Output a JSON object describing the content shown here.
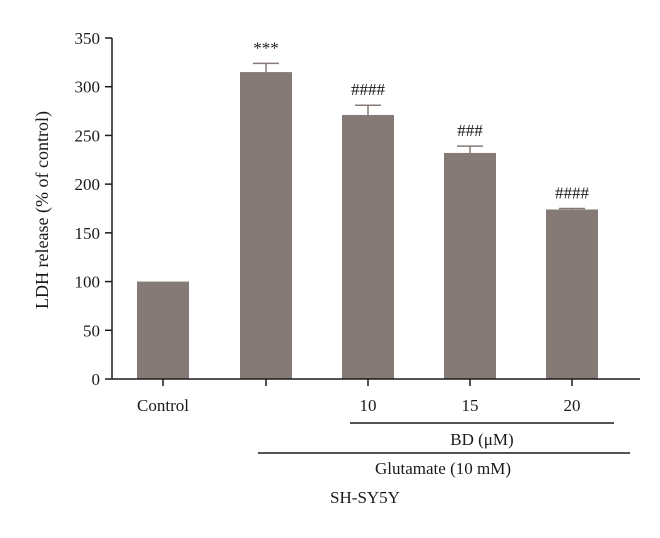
{
  "chart_data": {
    "type": "bar",
    "ylabel": "LDH release (% of control)",
    "ylim": [
      0,
      350
    ],
    "yticks": [
      0,
      50,
      100,
      150,
      200,
      250,
      300,
      350
    ],
    "bar_color": "#857a75",
    "categories": [
      "Control",
      "",
      "10",
      "15",
      "20"
    ],
    "values": [
      100,
      315,
      271,
      232,
      174
    ],
    "errors": [
      0,
      9,
      10,
      7,
      1
    ],
    "significance": [
      "",
      "***",
      "####",
      "###",
      "####"
    ],
    "group_labels": {
      "bd": "BD (μM)",
      "glutamate": "Glutamate (10 mM)",
      "cell_line": "SH-SY5Y"
    }
  }
}
